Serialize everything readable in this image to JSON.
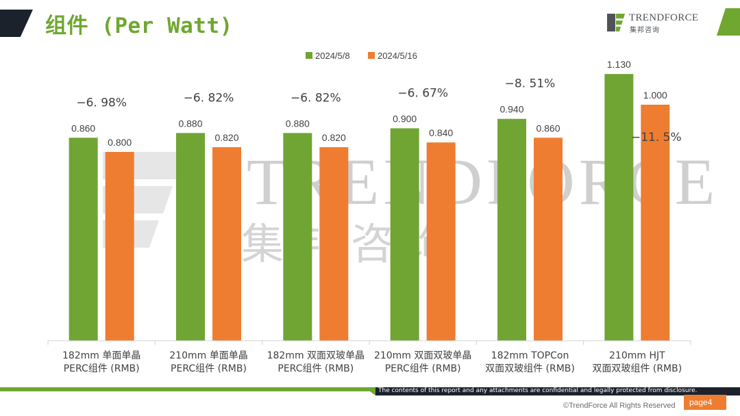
{
  "page": {
    "title": "组件 (Per Watt)",
    "footer_note": "The contents of this report and any attachments are confidential and legally protected from disclosure.",
    "copyright": "©TrendForce All Rights Reserved",
    "page_label": "page4"
  },
  "logo": {
    "name": "TRENDFORCE",
    "subtitle": "集邦咨询"
  },
  "watermark": {
    "text_en": "TRENDFORCE",
    "text_cn": "集邦咨询"
  },
  "colors": {
    "series1": "#70a534",
    "series2": "#ee7d31",
    "title": "#6fa730",
    "dark": "#1c222b"
  },
  "chart_data": {
    "type": "bar",
    "title": "",
    "xlabel": "",
    "ylabel": "",
    "ylim": [
      0,
      1.2
    ],
    "grid": false,
    "legend_position": "top",
    "categories": [
      [
        "182mm 单面单晶",
        "PERC组件 (RMB)"
      ],
      [
        "210mm 单面单晶",
        "PERC组件 (RMB)"
      ],
      [
        "182mm 双面双玻单晶",
        "PERC组件 (RMB)"
      ],
      [
        "210mm 双面双玻单晶",
        "PERC组件 (RMB)"
      ],
      [
        "182mm TOPCon",
        "双面双玻组件 (RMB)"
      ],
      [
        "210mm HJT",
        "双面双玻组件 (RMB)"
      ]
    ],
    "series": [
      {
        "name": "2024/5/8",
        "values": [
          0.86,
          0.88,
          0.88,
          0.9,
          0.94,
          1.13
        ],
        "labels": [
          "0.860",
          "0.880",
          "0.880",
          "0.900",
          "0.940",
          "1.130"
        ]
      },
      {
        "name": "2024/5/16",
        "values": [
          0.8,
          0.82,
          0.82,
          0.84,
          0.86,
          1.0
        ],
        "labels": [
          "0.800",
          "0.820",
          "0.820",
          "0.840",
          "0.860",
          "1.000"
        ]
      }
    ],
    "annotations": [
      "−6. 98%",
      "−6. 82%",
      "−6. 82%",
      "−6. 67%",
      "−8. 51%",
      "−11. 5%"
    ]
  }
}
